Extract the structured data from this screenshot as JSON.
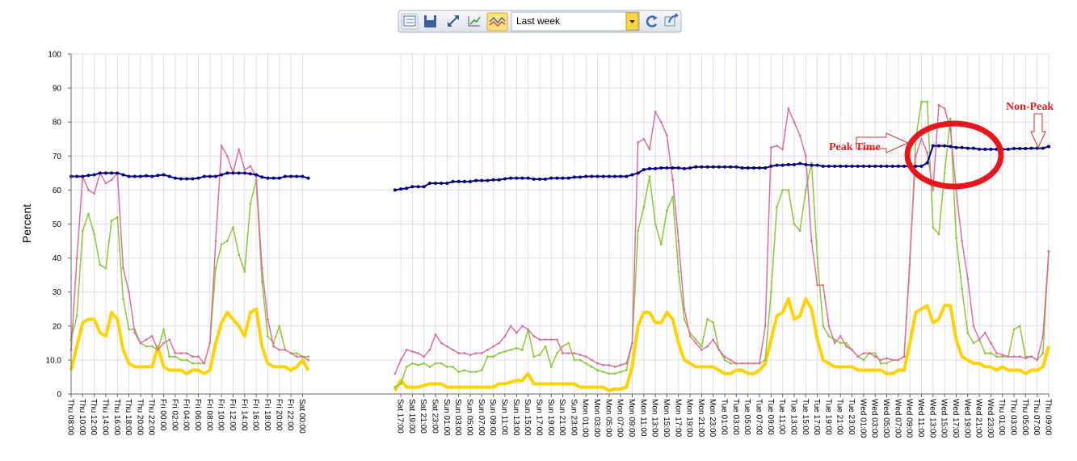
{
  "toolbar": {
    "range": "Last week"
  },
  "chart_data": {
    "type": "line",
    "ylabel": "Percent",
    "ylim": [
      0,
      100
    ],
    "yticks": [
      0,
      {
        "value": 10,
        "label": "10.0"
      },
      20,
      30,
      40,
      50,
      60,
      70,
      80,
      90,
      100
    ],
    "grid": true,
    "annotations": [
      "Peak Time",
      "Non-Peak"
    ],
    "categories": [
      "Thu 08:00",
      null,
      "Thu 10:00",
      null,
      "Thu 12:00",
      null,
      "Thu 14:00",
      null,
      "Thu 16:00",
      null,
      "Thu 18:00",
      null,
      "Thu 20:00",
      null,
      "Thu 22:00",
      null,
      "Fri 00:00",
      null,
      "Fri 02:00",
      null,
      "Fri 04:00",
      null,
      "Fri 06:00",
      null,
      "Fri 08:00",
      null,
      "Fri 10:00",
      null,
      "Fri 12:00",
      null,
      "Fri 14:00",
      null,
      "Fri 16:00",
      null,
      "Fri 18:00",
      null,
      "Fri 20:00",
      null,
      "Fri 22:00",
      null,
      "Sat 00:00",
      null,
      null,
      null,
      null,
      null,
      null,
      null,
      null,
      null,
      null,
      null,
      null,
      null,
      null,
      null,
      null,
      "Sat 17:00",
      null,
      "Sat 19:00",
      null,
      "Sat 21:00",
      null,
      "Sat 23:00",
      null,
      "Sun 01:00",
      null,
      "Sun 03:00",
      null,
      "Sun 05:00",
      null,
      "Sun 07:00",
      null,
      "Sun 09:00",
      null,
      "Sun 11:00",
      null,
      "Sun 13:00",
      null,
      "Sun 15:00",
      null,
      "Sun 17:00",
      null,
      "Sun 19:00",
      null,
      "Sun 21:00",
      null,
      "Sun 23:00",
      null,
      "Mon 01:00",
      null,
      "Mon 03:00",
      null,
      "Mon 05:00",
      null,
      "Mon 07:00",
      null,
      "Mon 09:00",
      null,
      "Mon 11:00",
      null,
      "Mon 13:00",
      null,
      "Mon 15:00",
      null,
      "Mon 17:00",
      null,
      "Mon 19:00",
      null,
      "Mon 21:00",
      null,
      "Mon 23:00",
      null,
      "Tue 01:00",
      null,
      "Tue 03:00",
      null,
      "Tue 05:00",
      null,
      "Tue 07:00",
      null,
      "Tue 09:00",
      null,
      "Tue 11:00",
      null,
      "Tue 13:00",
      null,
      "Tue 15:00",
      null,
      "Tue 17:00",
      null,
      "Tue 19:00",
      null,
      "Tue 21:00",
      null,
      "Tue 23:00",
      null,
      "Wed 01:00",
      null,
      "Wed 03:00",
      null,
      "Wed 05:00",
      null,
      "Wed 07:00",
      null,
      "Wed 09:00",
      null,
      "Wed 11:00",
      null,
      "Wed 13:00",
      null,
      "Wed 15:00",
      null,
      "Wed 17:00",
      null,
      "Wed 19:00",
      null,
      "Wed 21:00",
      null,
      "Wed 23:00",
      null,
      "Thu 01:00",
      null,
      "Thu 03:00",
      null,
      "Thu 05:00",
      null,
      "Thu 07:00",
      null,
      "Thu 09:00"
    ],
    "series": [
      {
        "color": "#000080",
        "marker": true,
        "width": 2,
        "values": [
          64,
          64,
          64,
          64.3,
          64.5,
          65,
          65,
          65,
          65,
          64.5,
          64,
          64,
          64,
          64.2,
          64,
          64.3,
          64.5,
          64,
          63.5,
          63.3,
          63.3,
          63.3,
          63.5,
          64,
          64,
          64,
          64.5,
          65,
          65,
          65,
          65,
          64.8,
          64.5,
          63.8,
          63.5,
          63.5,
          63.5,
          64,
          64,
          64,
          64,
          63.5,
          null,
          null,
          null,
          null,
          null,
          null,
          null,
          null,
          null,
          null,
          null,
          null,
          null,
          null,
          60,
          60.3,
          60.5,
          61,
          61,
          61,
          62,
          62,
          62,
          62,
          62.5,
          62.5,
          62.5,
          62.5,
          62.8,
          62.8,
          62.8,
          63,
          63,
          63.3,
          63.5,
          63.5,
          63.5,
          63.5,
          63.2,
          63.2,
          63.2,
          63.5,
          63.5,
          63.5,
          63.5,
          63.8,
          63.8,
          64,
          64,
          64,
          64,
          64,
          64,
          64,
          64,
          64.5,
          65,
          66,
          66.3,
          66.3,
          66.5,
          66.5,
          66.5,
          66.5,
          66.3,
          66.5,
          66.8,
          66.8,
          66.8,
          66.8,
          66.8,
          66.8,
          66.8,
          66.8,
          66.5,
          66.5,
          66.5,
          66.5,
          66.5,
          67,
          67.3,
          67.3,
          67.5,
          67.5,
          67.8,
          67.5,
          67.3,
          67.3,
          67,
          67,
          67,
          67,
          67,
          67,
          67,
          67,
          67,
          67,
          67,
          67,
          67,
          67,
          67,
          67,
          67,
          67,
          68,
          73,
          73,
          73,
          72.8,
          72.5,
          72.5,
          72.3,
          72.3,
          72,
          72,
          72,
          72,
          72,
          72,
          72.2,
          72.2,
          72.2,
          72.3,
          72.3,
          72.3,
          72.8
        ]
      },
      {
        "color": "#d9719c",
        "marker": true,
        "width": 1.5,
        "values": [
          13,
          40,
          64,
          60,
          59,
          65,
          62,
          63,
          65,
          37,
          30,
          18,
          15,
          16,
          17,
          13,
          15,
          16,
          12,
          12,
          12,
          11,
          11,
          9,
          15,
          45,
          73,
          70,
          65,
          72,
          66,
          67,
          64,
          37,
          22,
          14,
          13,
          13,
          12,
          11,
          11,
          10,
          null,
          null,
          null,
          null,
          null,
          null,
          null,
          null,
          null,
          null,
          null,
          null,
          null,
          null,
          6,
          10,
          13,
          12.5,
          12,
          11,
          13,
          17.5,
          15,
          14,
          13,
          12,
          12,
          11.5,
          12,
          12,
          13,
          14,
          15,
          17,
          20,
          18,
          20,
          19,
          17,
          16,
          16,
          16,
          16,
          12,
          12,
          12,
          11.5,
          11,
          10,
          9,
          8.5,
          8.5,
          8,
          8.5,
          9,
          15,
          74,
          75,
          72,
          83,
          80,
          76,
          63,
          45,
          25,
          17,
          15,
          13,
          14,
          16,
          13,
          11,
          10,
          9,
          9,
          9,
          9,
          9,
          20,
          72.5,
          73,
          72,
          84,
          80,
          76,
          70,
          45,
          32,
          32,
          20,
          15,
          17,
          14,
          13,
          11,
          12,
          12,
          11,
          10,
          10.5,
          10,
          10,
          11,
          40,
          70,
          75,
          71,
          60,
          85,
          84,
          78,
          60,
          45,
          34,
          20,
          16,
          18,
          15,
          12,
          11.5,
          11,
          11,
          11,
          10.5,
          11,
          10,
          17,
          42
        ]
      },
      {
        "color": "#8cc63e",
        "marker": true,
        "width": 1.5,
        "values": [
          16,
          23,
          48,
          53,
          47,
          38,
          37,
          51,
          52,
          28,
          19,
          19,
          15,
          14,
          14,
          13,
          19,
          11,
          11,
          10,
          10,
          9,
          9,
          9,
          15,
          37,
          44,
          45,
          49,
          41,
          36,
          56,
          63,
          33,
          17,
          15,
          20,
          13,
          12,
          12,
          11,
          11,
          null,
          null,
          null,
          null,
          null,
          null,
          null,
          null,
          null,
          null,
          null,
          null,
          null,
          null,
          2,
          3,
          8,
          9,
          8.5,
          9,
          8,
          9,
          9,
          8,
          8,
          6.5,
          7,
          6.5,
          6.5,
          7,
          11,
          11,
          12,
          12.5,
          13,
          13.5,
          13,
          19,
          11,
          11.5,
          14,
          8,
          12,
          14,
          15,
          10,
          10,
          9,
          8,
          7,
          6.5,
          6,
          6,
          6.5,
          7,
          15,
          48,
          55,
          64,
          50,
          44,
          54,
          58,
          36,
          22,
          18,
          16,
          14,
          22,
          21,
          13,
          10,
          9,
          9,
          9,
          9,
          9,
          9,
          10,
          30,
          55,
          60,
          60,
          50,
          48,
          60,
          68,
          40,
          20,
          17,
          16,
          15,
          15,
          13,
          11,
          10,
          12,
          12,
          9,
          9,
          10,
          10,
          11,
          38,
          75,
          86,
          86,
          49,
          47,
          65,
          81,
          46,
          31,
          18,
          15,
          16,
          12,
          12,
          11,
          11,
          11,
          19,
          20,
          11,
          11,
          10,
          12,
          42
        ]
      },
      {
        "color": "#ffd200",
        "marker": false,
        "width": 4,
        "values": [
          7,
          14,
          21,
          22,
          22,
          18,
          17,
          24,
          22,
          13,
          9,
          8,
          8,
          8,
          8,
          14,
          8,
          7,
          7,
          7,
          6,
          7,
          7,
          6,
          7,
          15,
          21,
          24,
          22,
          20,
          17,
          24,
          25,
          14,
          9,
          8,
          8,
          8,
          7,
          8,
          10,
          7,
          null,
          null,
          null,
          null,
          null,
          null,
          null,
          null,
          null,
          null,
          null,
          null,
          null,
          null,
          1,
          4,
          2,
          2,
          2,
          2.5,
          3,
          3,
          3,
          2,
          2,
          2,
          2,
          2,
          2,
          2,
          2,
          2,
          3,
          3,
          3.5,
          4,
          4,
          6,
          3,
          3,
          3,
          3,
          3,
          3,
          3,
          3,
          2,
          2,
          2,
          2,
          2,
          1,
          1.5,
          1.5,
          2,
          8,
          20,
          24,
          24,
          21,
          21,
          24,
          22,
          15,
          10,
          9,
          8,
          8,
          8,
          8,
          7,
          6,
          6,
          7,
          7,
          6,
          6,
          7,
          9,
          16,
          23,
          24,
          28,
          22,
          23,
          28,
          25,
          16,
          10,
          9,
          8,
          8,
          8,
          8,
          7,
          7,
          7,
          7,
          7,
          6,
          6,
          7,
          7,
          15,
          24,
          25,
          26,
          21,
          22,
          26,
          26,
          16,
          11,
          10,
          9,
          9,
          8,
          8,
          7,
          8,
          7,
          7,
          7,
          6,
          7,
          7,
          8,
          14
        ]
      }
    ]
  }
}
